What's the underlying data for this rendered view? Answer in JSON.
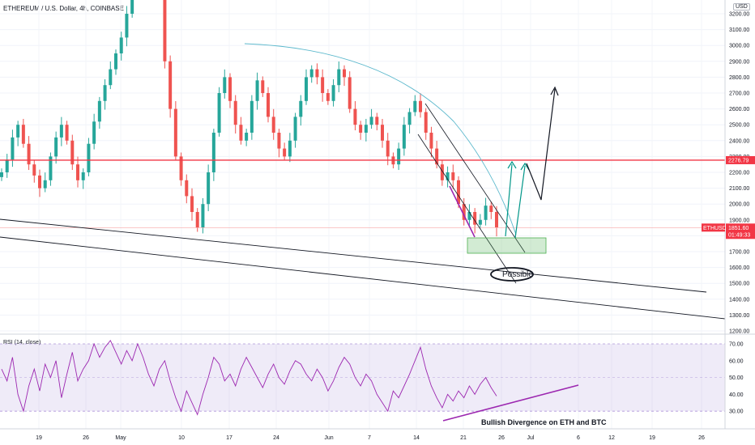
{
  "header": {
    "symbol_title": "ETHEREUM / U.S. Dollar, 4h, COINBASE",
    "currency": "USD",
    "rsi_title": "RSI (14, close)"
  },
  "chart_data": [
    {
      "type": "candlestick",
      "title": "ETHEREUM / U.S. Dollar, 4h, COINBASE",
      "ylim": [
        1200,
        3300
      ],
      "y_ticks": [
        "3200.00",
        "3100.00",
        "3000.00",
        "2900.00",
        "2800.00",
        "2700.00",
        "2600.00",
        "2500.00",
        "2400.00",
        "2300.00",
        "2200.00",
        "2100.00",
        "2000.00",
        "1900.00",
        "1800.00",
        "1700.00",
        "1600.00",
        "1500.00",
        "1400.00",
        "1300.00",
        "1200.00"
      ],
      "x_ticks": [
        "19",
        "26",
        "May",
        "10",
        "17",
        "24",
        "Jun",
        "7",
        "14",
        "21",
        "26",
        "Jul",
        "6",
        "12",
        "19",
        "26"
      ],
      "price_closes": [
        2200,
        2280,
        2420,
        2500,
        2380,
        2250,
        2180,
        2100,
        2150,
        2300,
        2420,
        2500,
        2400,
        2250,
        2150,
        2200,
        2380,
        2520,
        2650,
        2750,
        2850,
        2950,
        3050,
        3200,
        3350,
        3450,
        3500,
        3480,
        3420,
        3350,
        2900,
        2600,
        2300,
        2150,
        2050,
        1950,
        1850,
        2000,
        2200,
        2450,
        2700,
        2800,
        2650,
        2500,
        2400,
        2450,
        2650,
        2780,
        2700,
        2550,
        2450,
        2350,
        2300,
        2400,
        2550,
        2650,
        2800,
        2850,
        2800,
        2700,
        2650,
        2750,
        2850,
        2800,
        2600,
        2500,
        2450,
        2500,
        2550,
        2500,
        2400,
        2300,
        2250,
        2350,
        2500,
        2580,
        2650,
        2580,
        2450,
        2350,
        2250,
        2150,
        2200,
        2150,
        2000,
        1900,
        1950,
        1870,
        1900,
        1990,
        1950,
        1851.6
      ],
      "horizontal_line": {
        "label": "2276.79",
        "value": 2276.79,
        "color": "#f23645"
      },
      "current_price": {
        "symbol": "ETHUSD",
        "value": "1851.60",
        "countdown": "01:49:33",
        "color": "#f23645"
      },
      "annotations": [
        {
          "text": "Possible"
        }
      ]
    },
    {
      "type": "line",
      "title": "RSI (14, close)",
      "ylim": [
        20,
        80
      ],
      "y_ticks": [
        "70.00",
        "60.00",
        "50.00",
        "40.00",
        "30.00"
      ],
      "band": [
        30,
        70
      ],
      "values": [
        55,
        48,
        62,
        40,
        30,
        45,
        55,
        42,
        58,
        50,
        60,
        38,
        52,
        65,
        48,
        55,
        60,
        70,
        62,
        68,
        72,
        65,
        58,
        66,
        60,
        70,
        62,
        52,
        45,
        55,
        60,
        48,
        38,
        30,
        42,
        35,
        28,
        40,
        50,
        62,
        58,
        48,
        52,
        45,
        55,
        62,
        56,
        50,
        44,
        52,
        58,
        50,
        46,
        54,
        60,
        58,
        52,
        48,
        55,
        50,
        42,
        48,
        56,
        62,
        58,
        50,
        45,
        52,
        48,
        40,
        35,
        30,
        42,
        38,
        45,
        52,
        60,
        68,
        55,
        45,
        38,
        32,
        40,
        36,
        42,
        38,
        45,
        40,
        46,
        50,
        44,
        39
      ],
      "annotations": [
        {
          "text": "Bullish Divergence on ETH and BTC"
        }
      ]
    }
  ],
  "colors": {
    "up": "#26a69a",
    "down": "#ef5350",
    "rsi_line": "#9c27b0",
    "rsi_band": "#7e57c2",
    "arc": "#5bb8cc",
    "target_arrows": "#009688",
    "zone": "#4caf50"
  }
}
